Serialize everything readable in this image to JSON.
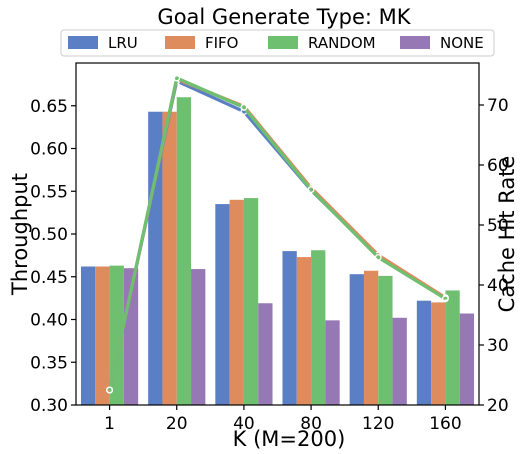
{
  "chart_data": {
    "type": "bar",
    "title": "Goal Generate Type: MK",
    "xlabel": "K (M=200)",
    "ylabel": "Throughput",
    "y2label": "Cache Hit Rate",
    "categories": [
      "1",
      "20",
      "40",
      "80",
      "120",
      "160"
    ],
    "ylim": [
      0.3,
      0.7
    ],
    "y2lim": [
      20,
      77
    ],
    "yticks": [
      "0.30",
      "0.35",
      "0.40",
      "0.45",
      "0.50",
      "0.55",
      "0.60",
      "0.65"
    ],
    "y2ticks": [
      "20",
      "30",
      "40",
      "50",
      "60",
      "70"
    ],
    "legend_position": "top-center",
    "grid": false,
    "series": [
      {
        "name": "LRU",
        "color": "#5b7fc5",
        "values": [
          0.462,
          0.643,
          0.535,
          0.48,
          0.453,
          0.422
        ]
      },
      {
        "name": "FIFO",
        "color": "#de8b5e",
        "values": [
          0.462,
          0.643,
          0.54,
          0.473,
          0.457,
          0.42
        ]
      },
      {
        "name": "RANDOM",
        "color": "#6fbf70",
        "values": [
          0.463,
          0.66,
          0.542,
          0.481,
          0.451,
          0.434
        ]
      },
      {
        "name": "NONE",
        "color": "#9678b5",
        "values": [
          0.46,
          0.459,
          0.419,
          0.399,
          0.402,
          0.407
        ]
      }
    ],
    "hit_rate_lines": [
      {
        "name": "LRU",
        "color": "#5b7fc5",
        "values": [
          22.5,
          74,
          68.9,
          55.8,
          44.8,
          37.8
        ]
      },
      {
        "name": "FIFO",
        "color": "#de8b5e",
        "values": [
          22.5,
          74.3,
          69.8,
          56.2,
          45.0,
          37.9
        ]
      },
      {
        "name": "RANDOM",
        "color": "#6fbf70",
        "values": [
          22.5,
          74.5,
          69.6,
          55.9,
          44.6,
          37.7
        ]
      }
    ]
  }
}
